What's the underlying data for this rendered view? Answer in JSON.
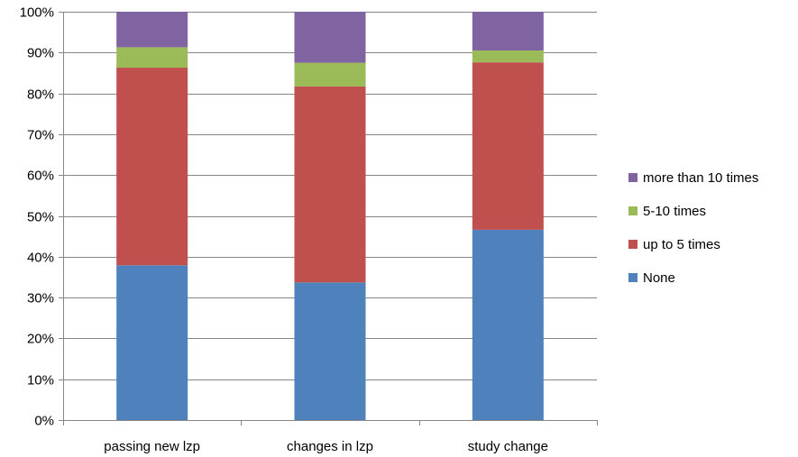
{
  "chart_data": {
    "type": "bar",
    "stacked": true,
    "percent": true,
    "categories": [
      "passing new lzp",
      "changes in lzp",
      "study change"
    ],
    "series": [
      {
        "name": "None",
        "values": [
          37.9,
          33.7,
          46.6
        ],
        "color": "#4F81BD"
      },
      {
        "name": "up to 5 times",
        "values": [
          48.4,
          48.0,
          41.0
        ],
        "color": "#C0504D"
      },
      {
        "name": "5-10 times",
        "values": [
          5.0,
          5.8,
          2.9
        ],
        "color": "#9BBB59"
      },
      {
        "name": "more than 10 times",
        "values": [
          8.7,
          12.5,
          9.5
        ],
        "color": "#8064A2"
      }
    ],
    "y_ticks": [
      "0%",
      "10%",
      "20%",
      "30%",
      "40%",
      "50%",
      "60%",
      "70%",
      "80%",
      "90%",
      "100%"
    ],
    "ylim": [
      0,
      100
    ],
    "grid": true,
    "legend_position": "right",
    "legend_order": [
      "more than 10 times",
      "5-10 times",
      "up to 5 times",
      "None"
    ]
  }
}
